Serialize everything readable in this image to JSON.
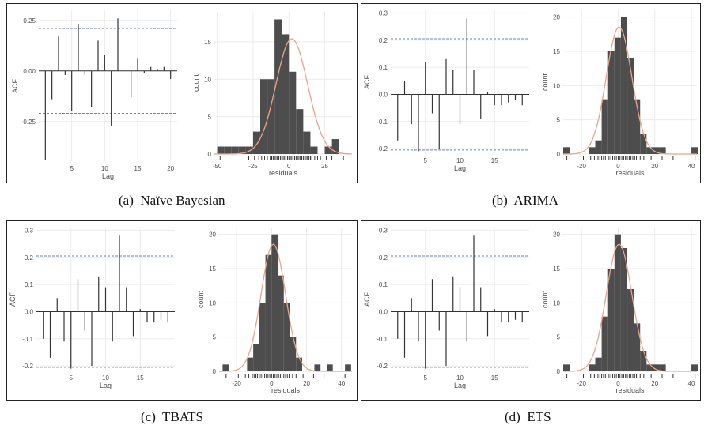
{
  "panels": [
    {
      "caption": "(a)  Naïve Bayesian",
      "acf": {
        "ylabel": "ACF",
        "xlabel": "Lag",
        "ylim": [
          -0.45,
          0.3
        ],
        "xlim": [
          0,
          21
        ],
        "yticks": [
          {
            "v": 0.25,
            "label": "0.25"
          },
          {
            "v": 0.0,
            "label": "0.00"
          },
          {
            "v": -0.25,
            "label": "-0.25"
          }
        ],
        "xticks": [
          {
            "v": 5,
            "label": "5"
          },
          {
            "v": 10,
            "label": "10"
          },
          {
            "v": 15,
            "label": "15"
          },
          {
            "v": 20,
            "label": "20"
          }
        ],
        "conf": 0.21,
        "lags": [
          1,
          2,
          3,
          4,
          5,
          6,
          7,
          8,
          9,
          10,
          11,
          12,
          13,
          14,
          15,
          16,
          17,
          18,
          19,
          20
        ],
        "values": [
          -0.44,
          -0.14,
          0.17,
          -0.02,
          -0.2,
          0.23,
          -0.02,
          -0.18,
          0.15,
          0.08,
          -0.27,
          0.26,
          0.0,
          -0.13,
          0.06,
          -0.01,
          0.02,
          0.01,
          0.02,
          -0.04
        ]
      },
      "hist": {
        "ylabel": "count",
        "xlabel": "residuals",
        "xlim": [
          -52,
          44
        ],
        "ylim": [
          0,
          19
        ],
        "yticks": [
          {
            "v": 0,
            "label": "0"
          },
          {
            "v": 5,
            "label": "5"
          },
          {
            "v": 10,
            "label": "10"
          },
          {
            "v": 15,
            "label": "15"
          }
        ],
        "xticks": [
          {
            "v": -50,
            "label": "-50"
          },
          {
            "v": -25,
            "label": "-25"
          },
          {
            "v": 0,
            "label": "0"
          },
          {
            "v": 25,
            "label": "25"
          }
        ],
        "bin_width": 5,
        "bin_start": -50,
        "counts": [
          1,
          1,
          1,
          1,
          1,
          3,
          10,
          10,
          18,
          16,
          11,
          6,
          3,
          1,
          0,
          1,
          2
        ],
        "normal": {
          "mean": 2,
          "sd": 11,
          "n": 85
        },
        "rug": [
          -48,
          -28,
          -24,
          -21,
          -19,
          -17,
          -15,
          -13,
          -12,
          -11,
          -10,
          -9,
          -8,
          -7,
          -6,
          -5,
          -4,
          -3,
          -2,
          -1,
          0,
          1,
          2,
          3,
          4,
          5,
          6,
          7,
          8,
          9,
          10,
          11,
          12,
          13,
          14,
          15,
          16,
          18,
          20,
          22,
          26,
          30,
          38
        ]
      }
    },
    {
      "caption": "(b)  ARIMA",
      "acf": {
        "ylabel": "ACF",
        "xlabel": "Lag",
        "ylim": [
          -0.22,
          0.31
        ],
        "xlim": [
          0,
          20
        ],
        "yticks": [
          {
            "v": 0.3,
            "label": "0.3"
          },
          {
            "v": 0.2,
            "label": "0.2"
          },
          {
            "v": 0.1,
            "label": "0.1"
          },
          {
            "v": 0.0,
            "label": "0.0"
          },
          {
            "v": -0.1,
            "label": "-0.1"
          },
          {
            "v": -0.2,
            "label": "-0.2"
          }
        ],
        "xticks": [
          {
            "v": 5,
            "label": "5"
          },
          {
            "v": 10,
            "label": "10"
          },
          {
            "v": 15,
            "label": "15"
          }
        ],
        "conf": 0.205,
        "lags": [
          1,
          2,
          3,
          4,
          5,
          6,
          7,
          8,
          9,
          10,
          11,
          12,
          13,
          14,
          15,
          16,
          17,
          18,
          19
        ],
        "values": [
          -0.17,
          0.05,
          -0.11,
          -0.21,
          0.12,
          -0.07,
          -0.2,
          0.13,
          0.09,
          -0.11,
          0.28,
          0.09,
          -0.09,
          0.01,
          -0.04,
          -0.04,
          -0.03,
          -0.02,
          -0.04
        ]
      },
      "hist": {
        "ylabel": "count",
        "xlabel": "residuals",
        "xlim": [
          -30,
          43
        ],
        "ylim": [
          0,
          21
        ],
        "yticks": [
          {
            "v": 0,
            "label": "0"
          },
          {
            "v": 5,
            "label": "5"
          },
          {
            "v": 10,
            "label": "10"
          },
          {
            "v": 15,
            "label": "15"
          },
          {
            "v": 20,
            "label": "20"
          }
        ],
        "xticks": [
          {
            "v": -20,
            "label": "-20"
          },
          {
            "v": 0,
            "label": "0"
          },
          {
            "v": 20,
            "label": "20"
          },
          {
            "v": 40,
            "label": "40"
          }
        ],
        "bin_width": 3.5,
        "bin_start": -30,
        "counts": [
          1,
          0,
          0,
          0,
          1,
          2,
          8,
          15,
          17,
          20,
          14,
          8,
          3,
          1,
          1,
          1,
          0,
          0,
          0,
          0,
          1
        ],
        "normal": {
          "mean": 0.5,
          "sd": 7,
          "n": 93
        },
        "rug": [
          -28,
          -19,
          -15,
          -13,
          -11,
          -10,
          -9,
          -8,
          -7,
          -6,
          -5,
          -4,
          -3,
          -2,
          -1,
          0,
          1,
          2,
          3,
          4,
          5,
          6,
          7,
          8,
          9,
          10,
          12,
          14,
          18,
          24,
          30,
          42
        ]
      }
    },
    {
      "caption": "(c)  TBATS",
      "acf": {
        "ylabel": "ACF",
        "xlabel": "Lag",
        "ylim": [
          -0.22,
          0.31
        ],
        "xlim": [
          0,
          20
        ],
        "yticks": [
          {
            "v": 0.3,
            "label": "0.3"
          },
          {
            "v": 0.2,
            "label": "0.2"
          },
          {
            "v": 0.1,
            "label": "0.1"
          },
          {
            "v": 0.0,
            "label": "0.0"
          },
          {
            "v": -0.1,
            "label": "-0.1"
          },
          {
            "v": -0.2,
            "label": "-0.2"
          }
        ],
        "xticks": [
          {
            "v": 5,
            "label": "5"
          },
          {
            "v": 10,
            "label": "10"
          },
          {
            "v": 15,
            "label": "15"
          }
        ],
        "conf": 0.205,
        "lags": [
          1,
          2,
          3,
          4,
          5,
          6,
          7,
          8,
          9,
          10,
          11,
          12,
          13,
          14,
          15,
          16,
          17,
          18,
          19
        ],
        "values": [
          -0.1,
          -0.17,
          0.05,
          -0.11,
          -0.21,
          0.12,
          -0.07,
          -0.2,
          0.13,
          0.09,
          -0.11,
          0.28,
          0.09,
          -0.09,
          0.01,
          -0.04,
          -0.04,
          -0.03,
          -0.04
        ]
      },
      "hist": {
        "ylabel": "count",
        "xlabel": "residuals",
        "xlim": [
          -30,
          46
        ],
        "ylim": [
          0,
          21
        ],
        "yticks": [
          {
            "v": 0,
            "label": "0"
          },
          {
            "v": 5,
            "label": "5"
          },
          {
            "v": 10,
            "label": "10"
          },
          {
            "v": 15,
            "label": "15"
          },
          {
            "v": 20,
            "label": "20"
          }
        ],
        "xticks": [
          {
            "v": -20,
            "label": "-20"
          },
          {
            "v": 0,
            "label": "0"
          },
          {
            "v": 20,
            "label": "20"
          },
          {
            "v": 40,
            "label": "40"
          }
        ],
        "bin_width": 3.5,
        "bin_start": -28,
        "counts": [
          1,
          0,
          0,
          0,
          2,
          4,
          10,
          17,
          20,
          14,
          10,
          5,
          2,
          0,
          0,
          1,
          0,
          1,
          0,
          0,
          1
        ],
        "normal": {
          "mean": 1,
          "sd": 7,
          "n": 93
        },
        "rug": [
          -26,
          -19,
          -15,
          -13,
          -11,
          -10,
          -9,
          -8,
          -7,
          -6,
          -5,
          -4,
          -3,
          -2,
          -1,
          0,
          1,
          2,
          3,
          4,
          5,
          6,
          7,
          8,
          9,
          10,
          12,
          14,
          18,
          24,
          30,
          42
        ]
      }
    },
    {
      "caption": "(d)  ETS",
      "acf": {
        "ylabel": "ACF",
        "xlabel": "Lag",
        "ylim": [
          -0.22,
          0.31
        ],
        "xlim": [
          0,
          20
        ],
        "yticks": [
          {
            "v": 0.3,
            "label": "0.3"
          },
          {
            "v": 0.2,
            "label": "0.2"
          },
          {
            "v": 0.1,
            "label": "0.1"
          },
          {
            "v": 0.0,
            "label": "0.0"
          },
          {
            "v": -0.1,
            "label": "-0.1"
          },
          {
            "v": -0.2,
            "label": "-0.2"
          }
        ],
        "xticks": [
          {
            "v": 5,
            "label": "5"
          },
          {
            "v": 10,
            "label": "10"
          },
          {
            "v": 15,
            "label": "15"
          }
        ],
        "conf": 0.205,
        "lags": [
          1,
          2,
          3,
          4,
          5,
          6,
          7,
          8,
          9,
          10,
          11,
          12,
          13,
          14,
          15,
          16,
          17,
          18,
          19
        ],
        "values": [
          -0.1,
          -0.17,
          0.05,
          -0.11,
          -0.21,
          0.12,
          -0.07,
          -0.2,
          0.13,
          0.09,
          -0.11,
          0.28,
          0.09,
          -0.09,
          0.01,
          -0.04,
          -0.04,
          -0.03,
          -0.04
        ]
      },
      "hist": {
        "ylabel": "count",
        "xlabel": "residuals",
        "xlim": [
          -30,
          43
        ],
        "ylim": [
          0,
          21
        ],
        "yticks": [
          {
            "v": 0,
            "label": "0"
          },
          {
            "v": 5,
            "label": "5"
          },
          {
            "v": 10,
            "label": "10"
          },
          {
            "v": 15,
            "label": "15"
          },
          {
            "v": 20,
            "label": "20"
          }
        ],
        "xticks": [
          {
            "v": -20,
            "label": "-20"
          },
          {
            "v": 0,
            "label": "0"
          },
          {
            "v": 20,
            "label": "20"
          },
          {
            "v": 40,
            "label": "40"
          }
        ],
        "bin_width": 3.5,
        "bin_start": -30,
        "counts": [
          1,
          0,
          0,
          0,
          1,
          2,
          8,
          15,
          20,
          18,
          12,
          7,
          3,
          1,
          1,
          1,
          0,
          0,
          0,
          0,
          1
        ],
        "normal": {
          "mean": 0.5,
          "sd": 7,
          "n": 93
        },
        "rug": [
          -28,
          -19,
          -15,
          -13,
          -11,
          -10,
          -9,
          -8,
          -7,
          -6,
          -5,
          -4,
          -3,
          -2,
          -1,
          0,
          1,
          2,
          3,
          4,
          5,
          6,
          7,
          8,
          9,
          10,
          12,
          14,
          18,
          24,
          30,
          42
        ]
      }
    }
  ],
  "colors": {
    "bar": "#4d4d4d",
    "curve": "#e8a48a",
    "conf_line": "#6a7fc0",
    "grid": "#ebebeb",
    "text": "#4d4d4d"
  }
}
